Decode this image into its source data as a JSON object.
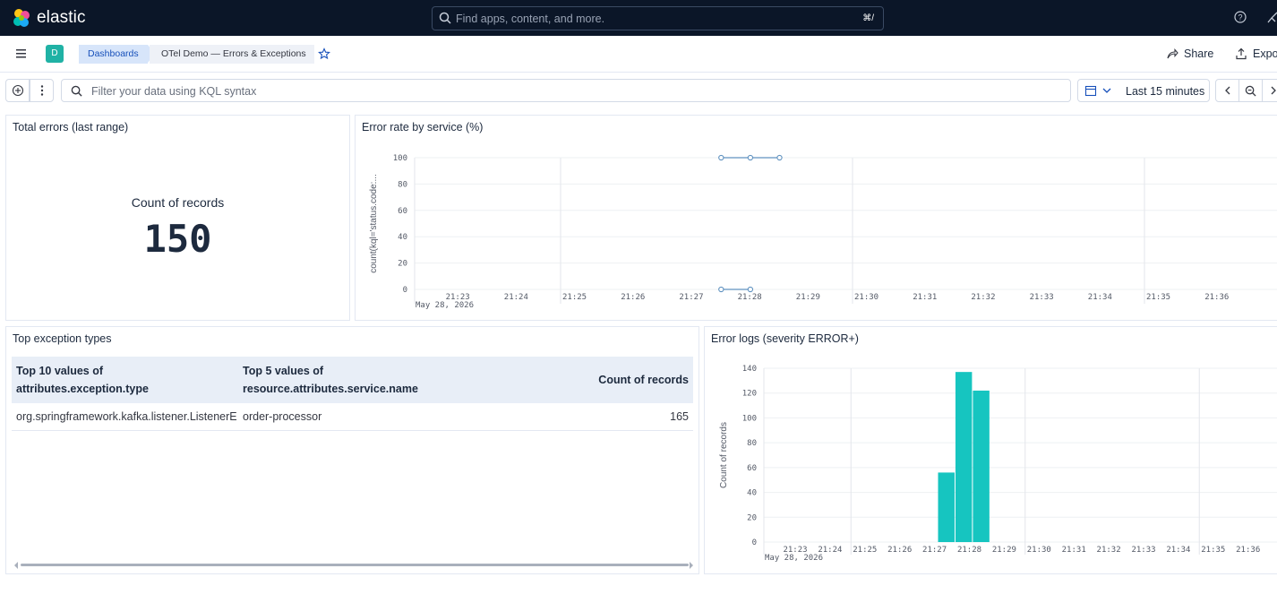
{
  "header": {
    "logo_text": "elastic",
    "search_placeholder": "Find apps, content, and more.",
    "search_shortcut": "⌘/"
  },
  "appbar": {
    "space_initial": "D",
    "breadcrumbs": [
      "Dashboards",
      "OTel Demo — Errors & Exceptions"
    ],
    "share_label": "Share",
    "export_label": "Export"
  },
  "query": {
    "kql_placeholder": "Filter your data using KQL syntax",
    "time_range": "Last 15 minutes"
  },
  "panels": {
    "total_errors": {
      "title": "Total errors (last range)",
      "metric_label": "Count of records",
      "metric_value": "150"
    },
    "error_rate": {
      "title": "Error rate by service (%)",
      "ylabel": "count(kql='status.code:...",
      "date_label": "May 28, 2026",
      "yticks": [
        "100",
        "80",
        "60",
        "40",
        "20",
        "0"
      ],
      "xticks": [
        "21:23",
        "21:24",
        "21:25",
        "21:26",
        "21:27",
        "21:28",
        "21:29",
        "21:30",
        "21:31",
        "21:32",
        "21:33",
        "21:34",
        "21:35",
        "21:36"
      ]
    },
    "top_exceptions": {
      "title": "Top exception types",
      "columns": [
        "Top 10 values of attributes.exception.type",
        "Top 5 values of resource.attributes.service.name",
        "Count of records"
      ],
      "rows": [
        [
          "org.springframework.kafka.listener.ListenerE",
          "order-processor",
          "165"
        ]
      ]
    },
    "error_logs": {
      "title": "Error logs (severity ERROR+)",
      "ylabel": "Count of records",
      "date_label": "May 28, 2026",
      "yticks": [
        "140",
        "120",
        "100",
        "80",
        "60",
        "40",
        "20",
        "0"
      ],
      "xticks": [
        "21:23",
        "21:24",
        "21:25",
        "21:26",
        "21:27",
        "21:28",
        "21:29",
        "21:30",
        "21:31",
        "21:32",
        "21:33",
        "21:34",
        "21:35",
        "21:36"
      ]
    }
  },
  "colors": {
    "header_bg": "#0b1628",
    "accent_teal": "#16c5c0",
    "line_blue": "#6092c0",
    "breadcrumb_bg": "#d7e5fa"
  },
  "chart_data": [
    {
      "type": "line",
      "title": "Error rate by service (%)",
      "ylabel": "count(kql='status.code:...",
      "ylim": [
        0,
        100
      ],
      "x_unit": "time",
      "series": [
        {
          "x": [
            "21:27:45",
            "21:28:15",
            "21:28:45"
          ],
          "values": [
            100,
            100,
            100
          ]
        },
        {
          "x": [
            "21:27:45",
            "21:28:15"
          ],
          "values": [
            0,
            0
          ]
        }
      ]
    },
    {
      "type": "bar",
      "title": "Error logs (severity ERROR+)",
      "ylabel": "Count of records",
      "ylim": [
        0,
        140
      ],
      "categories": [
        "21:27:30",
        "21:28:00",
        "21:28:30"
      ],
      "values": [
        56,
        137,
        122
      ]
    }
  ]
}
